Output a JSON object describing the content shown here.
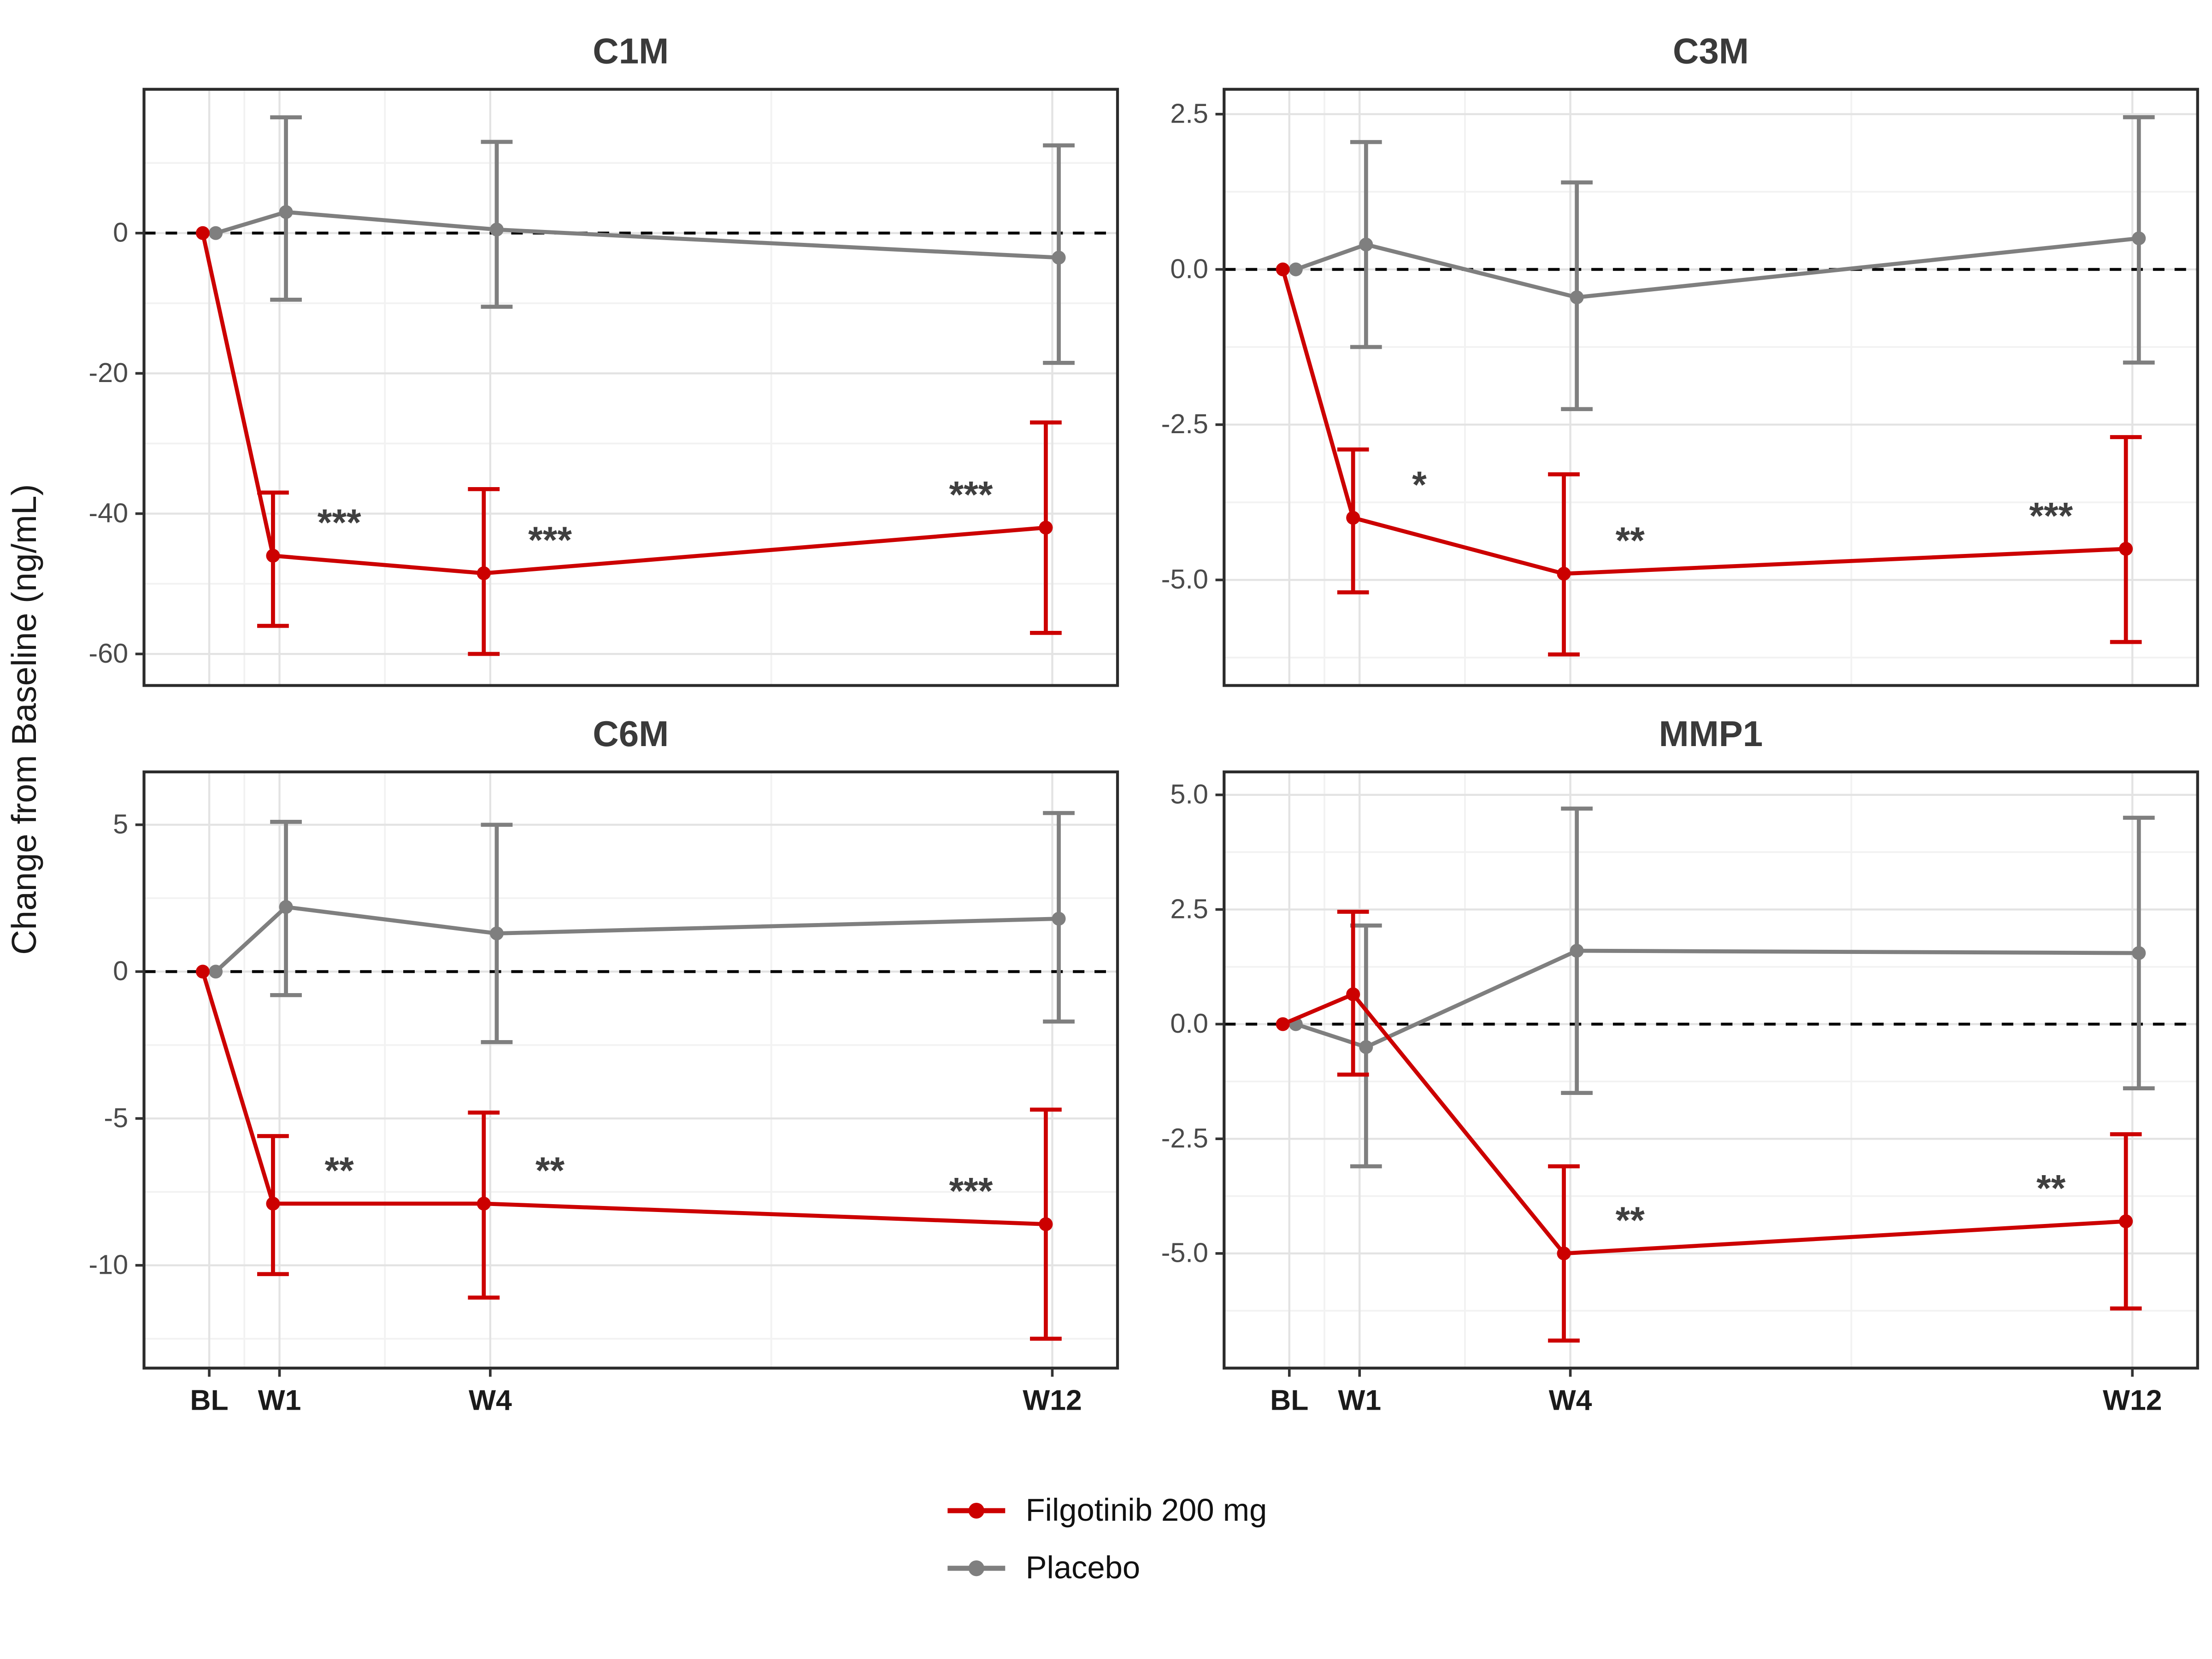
{
  "figure": {
    "y_axis_label": "Change from Baseline (ng/mL)",
    "x_tick_labels": [
      "BL",
      "W1",
      "W4",
      "W12"
    ],
    "x_weeks": [
      0,
      1,
      4,
      12
    ]
  },
  "legend": {
    "position": "bottom-center",
    "items": [
      {
        "label": "Filgotinib 200 mg",
        "color": "#CC0000",
        "symbol": "line-dot"
      },
      {
        "label": "Placebo",
        "color": "#7F7F7F",
        "symbol": "line-dot"
      }
    ]
  },
  "chart_data": [
    {
      "type": "line",
      "title": "C1M",
      "x_categories": [
        "BL",
        "W1",
        "W4",
        "W12"
      ],
      "x_weeks": [
        0,
        1,
        4,
        12
      ],
      "ylim": [
        -64.5,
        20.5
      ],
      "yticks": [
        0,
        -20,
        -40,
        -60
      ],
      "ytick_labels": [
        "0",
        "-20",
        "-40",
        "-60"
      ],
      "zero_line": true,
      "grid": true,
      "series": [
        {
          "name": "Filgotinib 200 mg",
          "color": "#CC0000",
          "values": [
            0,
            -46,
            -48.5,
            -42
          ],
          "ci_low": [
            null,
            -56,
            -60,
            -57
          ],
          "ci_high": [
            null,
            -37,
            -36.5,
            -27
          ],
          "sig": [
            "",
            "***",
            "***",
            "***"
          ]
        },
        {
          "name": "Placebo",
          "color": "#7F7F7F",
          "values": [
            0,
            3,
            0.5,
            -3.5
          ],
          "ci_low": [
            null,
            -9.5,
            -10.5,
            -18.5
          ],
          "ci_high": [
            null,
            16.5,
            13,
            12.5
          ],
          "sig": [
            "",
            "",
            "",
            ""
          ]
        }
      ]
    },
    {
      "type": "line",
      "title": "C3M",
      "x_categories": [
        "BL",
        "W1",
        "W4",
        "W12"
      ],
      "x_weeks": [
        0,
        1,
        4,
        12
      ],
      "ylim": [
        -6.7,
        2.9
      ],
      "yticks": [
        2.5,
        0,
        -2.5,
        -5
      ],
      "ytick_labels": [
        "2.5",
        "0.0",
        "-2.5",
        "-5.0"
      ],
      "zero_line": true,
      "grid": true,
      "series": [
        {
          "name": "Filgotinib 200 mg",
          "color": "#CC0000",
          "values": [
            0,
            -4.0,
            -4.9,
            -4.5
          ],
          "ci_low": [
            null,
            -5.2,
            -6.2,
            -6.0
          ],
          "ci_high": [
            null,
            -2.9,
            -3.3,
            -2.7
          ],
          "sig": [
            "",
            "*",
            "**",
            "***"
          ]
        },
        {
          "name": "Placebo",
          "color": "#7F7F7F",
          "values": [
            0,
            0.4,
            -0.45,
            0.5
          ],
          "ci_low": [
            null,
            -1.25,
            -2.25,
            -1.5
          ],
          "ci_high": [
            null,
            2.05,
            1.4,
            2.45
          ],
          "sig": [
            "",
            "",
            "",
            ""
          ]
        }
      ]
    },
    {
      "type": "line",
      "title": "C6M",
      "x_categories": [
        "BL",
        "W1",
        "W4",
        "W12"
      ],
      "x_weeks": [
        0,
        1,
        4,
        12
      ],
      "ylim": [
        -13.5,
        6.8
      ],
      "yticks": [
        5,
        0,
        -5,
        -10
      ],
      "ytick_labels": [
        "5",
        "0",
        "-5",
        "-10"
      ],
      "zero_line": true,
      "grid": true,
      "series": [
        {
          "name": "Filgotinib 200 mg",
          "color": "#CC0000",
          "values": [
            0,
            -7.9,
            -7.9,
            -8.6
          ],
          "ci_low": [
            null,
            -10.3,
            -11.1,
            -12.5
          ],
          "ci_high": [
            null,
            -5.6,
            -4.8,
            -4.7
          ],
          "sig": [
            "",
            "**",
            "**",
            "***"
          ]
        },
        {
          "name": "Placebo",
          "color": "#7F7F7F",
          "values": [
            0,
            2.2,
            1.3,
            1.8
          ],
          "ci_low": [
            null,
            -0.8,
            -2.4,
            -1.7
          ],
          "ci_high": [
            null,
            5.1,
            5.0,
            5.4
          ],
          "sig": [
            "",
            "",
            "",
            ""
          ]
        }
      ]
    },
    {
      "type": "line",
      "title": "MMP1",
      "x_categories": [
        "BL",
        "W1",
        "W4",
        "W12"
      ],
      "x_weeks": [
        0,
        1,
        4,
        12
      ],
      "ylim": [
        -7.5,
        5.5
      ],
      "yticks": [
        5,
        2.5,
        0,
        -2.5,
        -5
      ],
      "ytick_labels": [
        "5.0",
        "2.5",
        "0.0",
        "-2.5",
        "-5.0"
      ],
      "zero_line": true,
      "grid": true,
      "series": [
        {
          "name": "Filgotinib 200 mg",
          "color": "#CC0000",
          "values": [
            0,
            0.65,
            -5.0,
            -4.3
          ],
          "ci_low": [
            null,
            -1.1,
            -6.9,
            -6.2
          ],
          "ci_high": [
            null,
            2.45,
            -3.1,
            -2.4
          ],
          "sig": [
            "",
            "",
            "**",
            "**"
          ]
        },
        {
          "name": "Placebo",
          "color": "#7F7F7F",
          "values": [
            0,
            -0.5,
            1.6,
            1.55
          ],
          "ci_low": [
            null,
            -3.1,
            -1.5,
            -1.4
          ],
          "ci_high": [
            null,
            2.15,
            4.7,
            4.5
          ],
          "sig": [
            "",
            "",
            "",
            ""
          ]
        }
      ]
    }
  ]
}
